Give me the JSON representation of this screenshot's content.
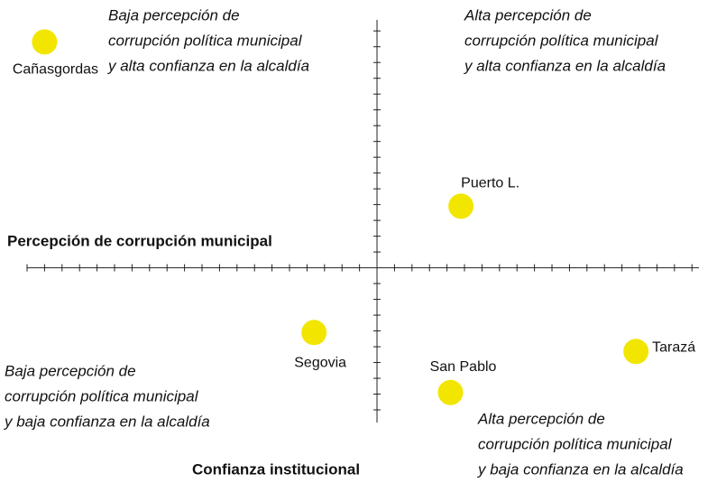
{
  "chart_data": {
    "type": "scatter",
    "xlabel": "Percepción de corrupción municipal",
    "ylabel": "Confianza institucional",
    "labels": [
      "Cañasgordas",
      "Puerto L.",
      "Segovia",
      "San Pablo",
      "Tarazá"
    ],
    "x": [
      -19.0,
      4.8,
      -3.6,
      4.2,
      14.8
    ],
    "values": [
      14.3,
      3.9,
      -4.1,
      -7.9,
      -5.3
    ],
    "color": "#f2e600",
    "xlim": [
      -20,
      18.4
    ],
    "ylim": [
      -9.8,
      15.7
    ],
    "xticks": [
      -20,
      -19,
      -18,
      -17,
      -16,
      -15,
      -14,
      -13,
      -12,
      -11,
      -10,
      -9,
      -8,
      -7,
      -6,
      -5,
      -4,
      -3,
      -2,
      -1,
      1,
      2,
      3,
      4,
      5,
      6,
      7,
      8,
      9,
      10,
      11,
      12,
      13,
      14,
      15,
      16,
      17,
      18
    ],
    "yticks": [
      -9,
      -8,
      -7,
      -6,
      -5,
      -4,
      -3,
      -2,
      -1,
      1,
      2,
      3,
      4,
      5,
      6,
      7,
      8,
      9,
      10,
      11,
      12,
      13,
      14,
      15
    ],
    "annotations": [
      {
        "lines": [
          "Baja percepción de",
          "corrupción política municipal",
          "y alta confianza en la alcaldía"
        ]
      },
      {
        "lines": [
          "Alta percepción de",
          "corrupción política municipal",
          "y alta confianza en la alcaldía"
        ]
      },
      {
        "lines": [
          "Baja percepción de",
          "corrupción política municipal",
          "y baja confianza en la alcaldía"
        ]
      },
      {
        "lines": [
          "Alta percepción de",
          "corrupción política municipal",
          "y baja confianza en la alcaldía"
        ]
      }
    ]
  }
}
